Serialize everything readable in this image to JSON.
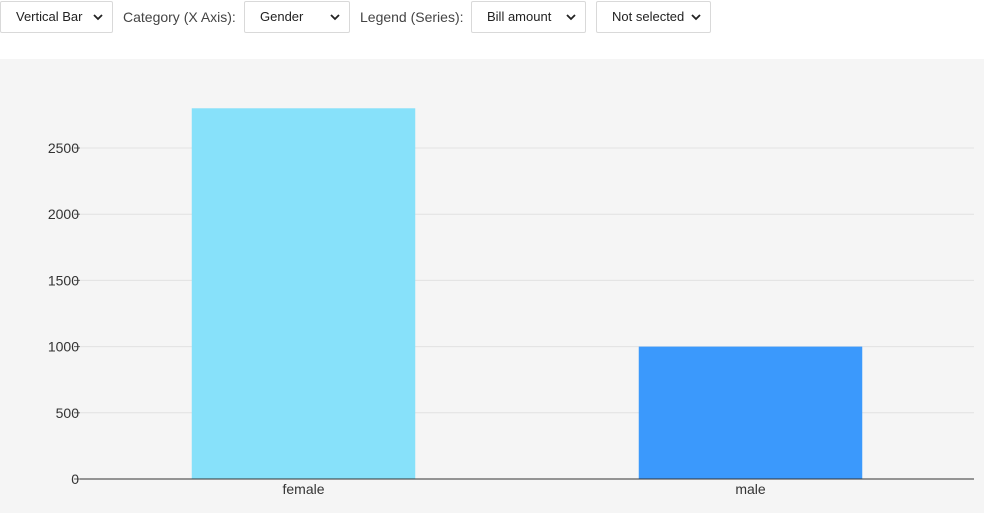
{
  "toolbar": {
    "chart_type": "Vertical Bar",
    "category_label": "Category (X Axis):",
    "category_value": "Gender",
    "legend_label": "Legend (Series):",
    "legend_value": "Bill amount",
    "extra_value": "Not selected"
  },
  "chart_data": {
    "type": "bar",
    "categories": [
      "female",
      "male"
    ],
    "series": [
      {
        "values": [
          2800,
          1000
        ]
      }
    ],
    "colors": [
      "#87e1fa",
      "#3b99fc"
    ],
    "ylim": [
      0,
      2800
    ],
    "yticks": [
      0,
      500,
      1000,
      1500,
      2000,
      2500
    ],
    "grid": true,
    "xlabel": "",
    "ylabel": ""
  }
}
